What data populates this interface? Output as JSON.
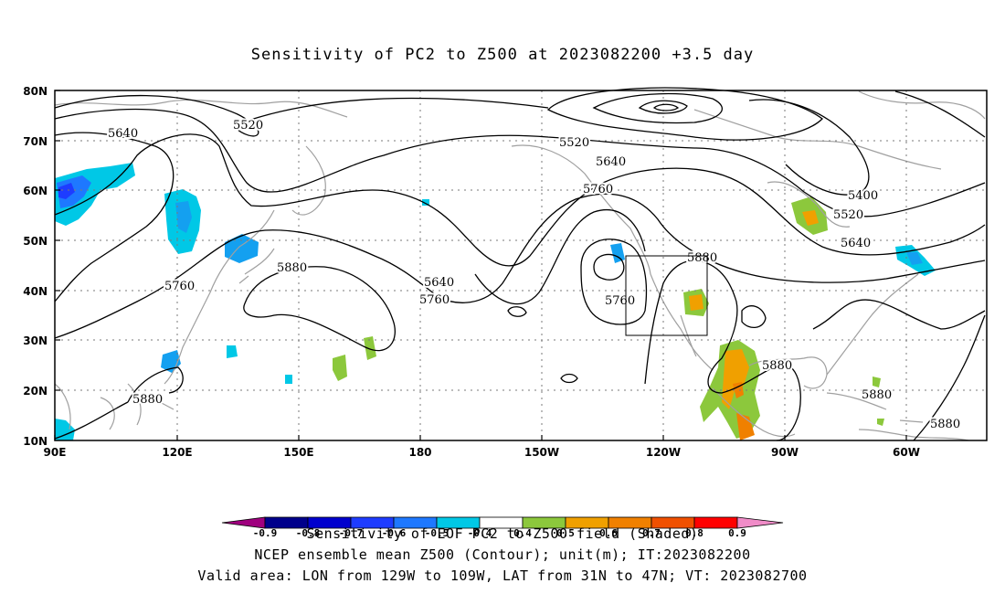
{
  "title": "Sensitivity of PC2 to Z500 at 2023082200 +3.5 day",
  "lat_labels": [
    "80N",
    "70N",
    "60N",
    "50N",
    "40N",
    "30N",
    "20N",
    "10N"
  ],
  "lon_labels": [
    "90E",
    "120E",
    "150E",
    "180",
    "150W",
    "120W",
    "90W",
    "60W"
  ],
  "contour_labels": [
    "5520",
    "5640",
    "5520",
    "5640",
    "5760",
    "5400",
    "5520",
    "5640",
    "5880",
    "5760",
    "5880",
    "5640",
    "5760",
    "5760",
    "5880",
    "5880",
    "5880",
    "5880"
  ],
  "colorbar": {
    "tick_labels": [
      "-0.9",
      "-0.8",
      "-0.7",
      "-0.6",
      "-0.5",
      "-0.4",
      "0.4",
      "0.5",
      "0.6",
      "0.7",
      "0.8",
      "0.9"
    ],
    "colors": [
      "#a0007f",
      "#00008b",
      "#0000cd",
      "#1e3cff",
      "#1e78ff",
      "#14a0f0",
      "#00c8e6",
      "#ffffff",
      "#8cc83c",
      "#f0a000",
      "#f08000",
      "#f05000",
      "#e61e00",
      "#ff0000",
      "#f08cc8"
    ],
    "title": "Sensitivity of EOF PC2 to Z500 field (Shaded)"
  },
  "footer": {
    "line2": "NCEP ensemble mean Z500 (Contour); unit(m); IT:2023082200",
    "line3": "Valid area: LON from 129W to 109W, LAT from 31N to 47N; VT: 2023082700"
  },
  "colors": {
    "contour": "#000000",
    "coastline": "#a0a0a0",
    "grid": "#7a7a7a"
  },
  "valid_area": {
    "lon_west": -129,
    "lon_east": -109,
    "lat_south": 31,
    "lat_north": 47
  }
}
